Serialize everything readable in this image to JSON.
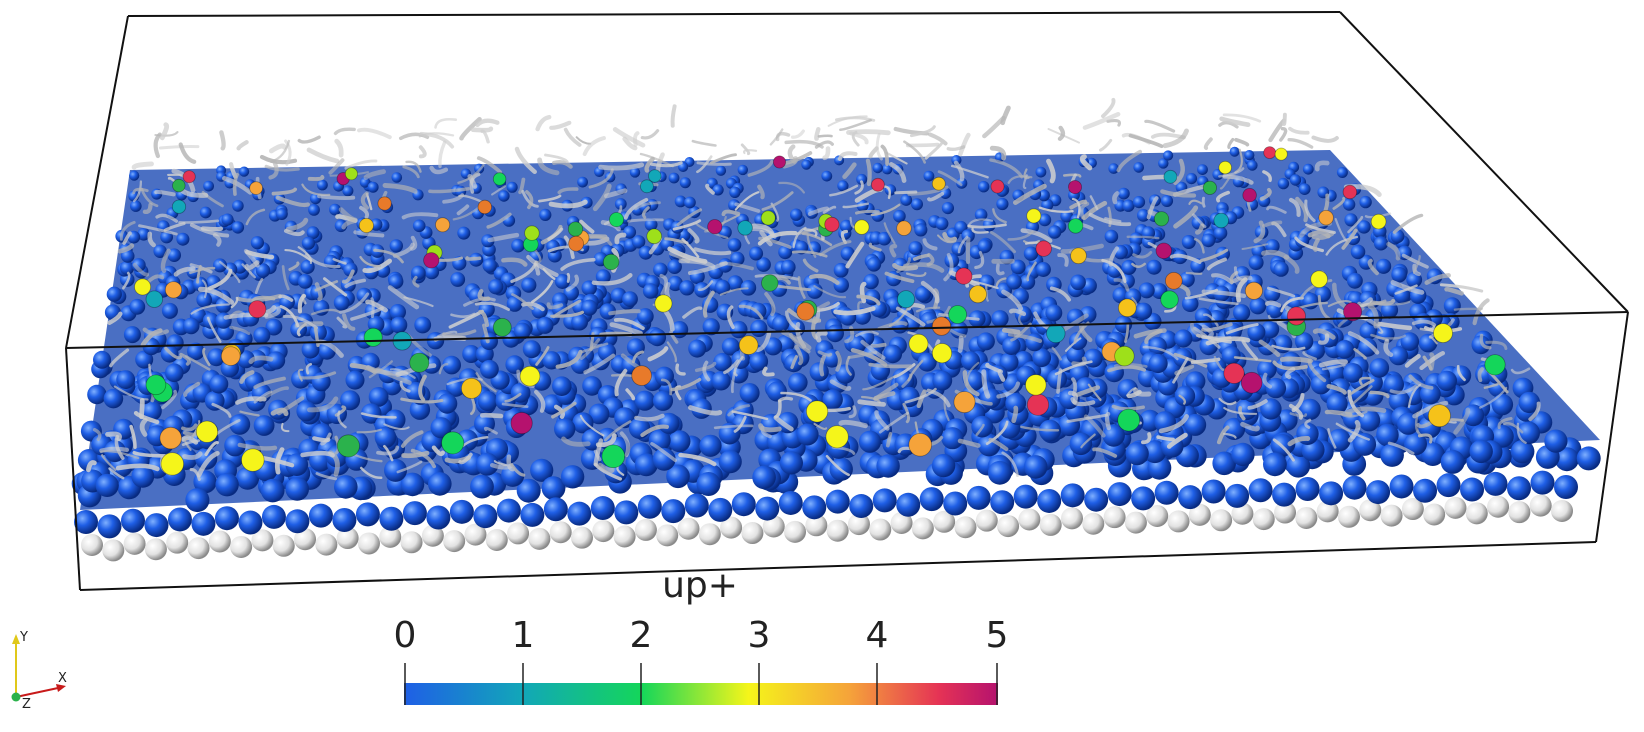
{
  "colorbar": {
    "title": "up+",
    "range": [
      0,
      5
    ],
    "ticks": [
      "0",
      "1",
      "2",
      "3",
      "4",
      "5"
    ],
    "colors": [
      "#1f5fe6",
      "#12a7b8",
      "#14d65a",
      "#f5f51a",
      "#f5a33a",
      "#e53355",
      "#b5126e"
    ]
  },
  "orientation_axes": {
    "x": "X",
    "y": "Y",
    "z": "Z"
  },
  "colors": {
    "bed_sphere": "#1f5fe6",
    "bottom_sphere": "#e8e8e8",
    "vortex_tube": "#c9c9c9",
    "box_edge": "#111111"
  }
}
